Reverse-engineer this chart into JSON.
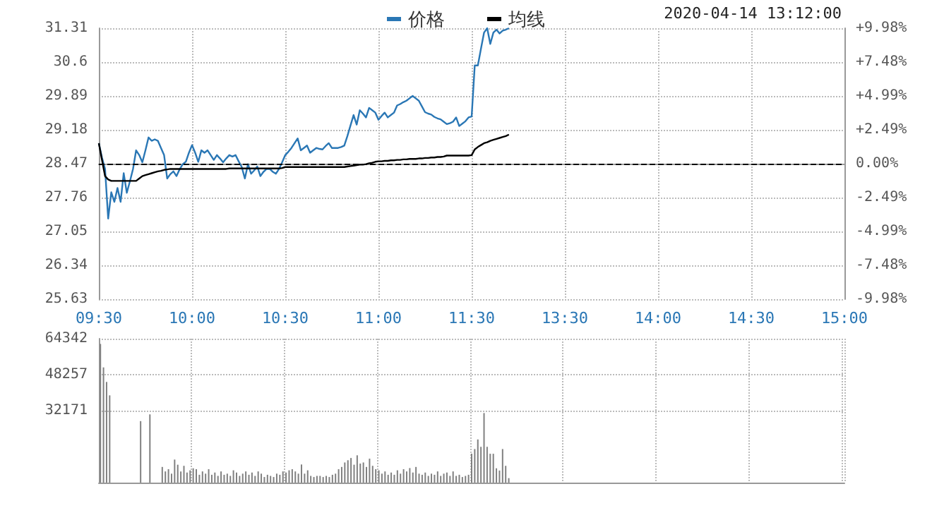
{
  "chart_data": [
    {
      "type": "line",
      "legend": "top",
      "grid": true,
      "categories": [
        "09:30",
        null,
        null,
        null,
        null,
        null,
        null,
        null,
        null,
        null,
        null,
        null,
        null,
        null,
        null,
        null,
        null,
        null,
        null,
        null,
        null,
        null,
        null,
        null,
        null,
        null,
        null,
        null,
        null,
        null,
        "10:00",
        null,
        null,
        null,
        null,
        null,
        null,
        null,
        null,
        null,
        null,
        null,
        null,
        null,
        null,
        null,
        null,
        null,
        null,
        null,
        null,
        null,
        null,
        null,
        null,
        null,
        null,
        null,
        null,
        null,
        "10:30",
        null,
        null,
        null,
        null,
        null,
        null,
        null,
        null,
        null,
        null,
        null,
        null,
        null,
        null,
        null,
        null,
        null,
        null,
        null,
        null,
        null,
        null,
        null,
        null,
        null,
        null,
        null,
        null,
        null,
        "11:00",
        null,
        null,
        null,
        null,
        null,
        null,
        null,
        null,
        null,
        null,
        null,
        null,
        null,
        null,
        null,
        null,
        null,
        null,
        null,
        null,
        null,
        null,
        null,
        null,
        null,
        null,
        null,
        null,
        null,
        "11:30",
        null,
        null,
        null,
        null,
        null,
        null,
        null,
        null,
        null,
        null,
        null,
        null,
        null,
        null,
        null,
        null,
        null,
        null,
        null,
        null,
        null,
        null,
        null,
        null,
        null,
        null,
        null,
        null,
        null,
        "13:30",
        null,
        null,
        null,
        null,
        null,
        null,
        null,
        null,
        null,
        null,
        null,
        null,
        null,
        null,
        null,
        null,
        null,
        null,
        null,
        null,
        null,
        null,
        null,
        null,
        null,
        null,
        null,
        null,
        null,
        "14:00",
        null,
        null,
        null,
        null,
        null,
        null,
        null,
        null,
        null,
        null,
        null,
        null,
        null,
        null,
        null,
        null,
        null,
        null,
        null,
        null,
        null,
        null,
        null,
        null,
        null,
        null,
        null,
        null,
        null,
        "14:30",
        null,
        null,
        null,
        null,
        null,
        null,
        null,
        null,
        null,
        null,
        null,
        null,
        null,
        null,
        null,
        null,
        null,
        null,
        null,
        null,
        null,
        null,
        null,
        null,
        null,
        null,
        null,
        null,
        null,
        "15:00"
      ],
      "ylim": [
        25.63,
        31.31
      ],
      "yticks": [
        25.63,
        26.34,
        27.05,
        27.76,
        28.47,
        29.18,
        29.89,
        30.6,
        31.31
      ],
      "y2lim": [
        -9.98,
        9.98
      ],
      "y2ticks": [
        {
          "value": -9.98,
          "label": "-9.98%"
        },
        {
          "value": -7.48,
          "label": "-7.48%"
        },
        {
          "value": -4.99,
          "label": "-4.99%"
        },
        {
          "value": -2.49,
          "label": "-2.49%"
        },
        {
          "value": 0,
          "label": "0.00%"
        },
        {
          "value": 2.49,
          "label": "+2.49%"
        },
        {
          "value": 4.99,
          "label": "+4.99%"
        },
        {
          "value": 7.48,
          "label": "+7.48%"
        },
        {
          "value": 9.98,
          "label": "+9.98%"
        }
      ],
      "ref_lines": [
        {
          "axis": "y",
          "value": 28.47,
          "color": "#000000",
          "line_style": "dashed"
        }
      ],
      "annotations": [
        "2020-04-14 13:12:00"
      ],
      "series": [
        {
          "name": "价格",
          "color": "#2a77b5",
          "values": [
            28.9,
            28.6,
            28.36,
            27.32,
            27.87,
            27.67,
            27.96,
            27.67,
            28.27,
            27.86,
            28.1,
            28.36,
            28.75,
            28.65,
            28.5,
            28.75,
            29.02,
            28.95,
            28.98,
            28.95,
            28.8,
            28.65,
            28.16,
            28.25,
            28.31,
            28.21,
            28.35,
            28.46,
            28.51,
            28.7,
            28.86,
            28.7,
            28.51,
            28.75,
            28.7,
            28.75,
            28.65,
            28.55,
            28.65,
            28.58,
            28.5,
            28.58,
            28.65,
            28.62,
            28.65,
            28.52,
            28.4,
            28.16,
            28.46,
            28.26,
            28.33,
            28.41,
            28.21,
            28.3,
            28.36,
            28.36,
            28.3,
            28.26,
            28.36,
            28.5,
            28.65,
            28.72,
            28.8,
            28.9,
            29.0,
            28.75,
            28.8,
            28.85,
            28.7,
            28.75,
            28.8,
            28.78,
            28.77,
            28.84,
            28.9,
            28.8,
            28.8,
            28.8,
            28.82,
            28.85,
            29.05,
            29.27,
            29.49,
            29.29,
            29.59,
            29.52,
            29.44,
            29.64,
            29.59,
            29.54,
            29.39,
            29.47,
            29.54,
            29.44,
            29.49,
            29.54,
            29.69,
            29.72,
            29.76,
            29.79,
            29.84,
            29.89,
            29.84,
            29.79,
            29.67,
            29.55,
            29.52,
            29.5,
            29.45,
            29.42,
            29.4,
            29.35,
            29.3,
            29.32,
            29.35,
            29.44,
            29.26,
            29.31,
            29.36,
            29.44,
            29.46,
            30.53,
            30.53,
            30.88,
            31.22,
            31.31,
            30.98,
            31.22,
            31.28,
            31.2,
            31.26,
            31.28,
            31.31,
            null,
            null,
            null,
            null,
            null,
            null,
            null,
            null,
            null,
            null,
            null,
            null,
            null,
            null,
            null,
            null,
            null,
            null,
            null,
            null,
            null,
            null,
            null,
            null,
            null,
            null,
            null,
            null,
            null,
            null,
            null,
            null,
            null,
            null,
            null,
            null,
            null,
            null,
            null,
            null,
            null,
            null,
            null,
            null,
            null,
            null,
            null,
            null,
            null,
            null,
            null,
            null,
            null,
            null,
            null,
            null,
            null,
            null,
            null,
            null,
            null,
            null,
            null,
            null,
            null,
            null,
            null,
            null,
            null,
            null,
            null,
            null,
            null,
            null,
            null,
            null,
            null,
            null,
            null,
            null,
            null,
            null,
            null,
            null,
            null,
            null,
            null,
            null,
            null,
            null,
            null,
            null,
            null,
            null,
            null,
            null,
            null,
            null,
            null,
            null,
            null,
            null,
            null,
            null,
            null,
            null,
            null,
            null
          ]
        },
        {
          "name": "均线",
          "color": "#000000",
          "values": [
            28.9,
            28.55,
            28.21,
            28.14,
            28.11,
            28.11,
            28.11,
            28.11,
            28.11,
            28.11,
            28.11,
            28.11,
            28.11,
            28.16,
            28.21,
            28.23,
            28.25,
            28.27,
            28.29,
            28.31,
            28.32,
            28.34,
            28.35,
            28.36,
            28.36,
            28.36,
            28.36,
            28.36,
            28.36,
            28.36,
            28.36,
            28.36,
            28.36,
            28.36,
            28.36,
            28.36,
            28.36,
            28.36,
            28.36,
            28.36,
            28.36,
            28.36,
            28.37,
            28.37,
            28.37,
            28.37,
            28.37,
            28.37,
            28.37,
            28.37,
            28.37,
            28.37,
            28.37,
            28.37,
            28.37,
            28.37,
            28.37,
            28.37,
            28.37,
            28.38,
            28.4,
            28.4,
            28.4,
            28.4,
            28.4,
            28.4,
            28.4,
            28.4,
            28.4,
            28.4,
            28.4,
            28.4,
            28.4,
            28.4,
            28.4,
            28.4,
            28.4,
            28.4,
            28.4,
            28.4,
            28.41,
            28.42,
            28.43,
            28.44,
            28.45,
            28.45,
            28.46,
            28.48,
            28.49,
            28.51,
            28.52,
            28.52,
            28.53,
            28.53,
            28.54,
            28.54,
            28.55,
            28.55,
            28.56,
            28.56,
            28.57,
            28.57,
            28.57,
            28.58,
            28.58,
            28.59,
            28.59,
            28.6,
            28.6,
            28.61,
            28.61,
            28.62,
            28.64,
            28.64,
            28.64,
            28.64,
            28.64,
            28.64,
            28.64,
            28.64,
            28.65,
            28.77,
            28.82,
            28.86,
            28.9,
            28.92,
            28.95,
            28.97,
            28.99,
            29.01,
            29.03,
            29.05,
            29.08,
            null,
            null,
            null,
            null,
            null,
            null,
            null,
            null,
            null,
            null,
            null,
            null,
            null,
            null,
            null,
            null,
            null,
            null,
            null,
            null,
            null,
            null,
            null,
            null,
            null,
            null,
            null,
            null,
            null,
            null,
            null,
            null,
            null,
            null,
            null,
            null,
            null,
            null,
            null,
            null,
            null,
            null,
            null,
            null,
            null,
            null,
            null,
            null,
            null,
            null,
            null,
            null,
            null,
            null,
            null,
            null,
            null,
            null,
            null,
            null,
            null,
            null,
            null,
            null,
            null,
            null,
            null,
            null,
            null,
            null,
            null,
            null,
            null,
            null,
            null,
            null,
            null,
            null,
            null,
            null,
            null,
            null,
            null,
            null,
            null,
            null,
            null,
            null,
            null,
            null,
            null,
            null,
            null,
            null,
            null,
            null,
            null,
            null,
            null,
            null,
            null,
            null,
            null,
            null,
            null,
            null,
            null,
            null
          ]
        }
      ]
    },
    {
      "type": "bar",
      "grid": true,
      "tick_labels": "y",
      "categories": [
        null,
        null,
        null,
        null,
        null,
        null,
        null,
        null,
        null,
        null,
        null,
        null,
        null,
        null,
        null,
        null,
        null,
        null,
        null,
        null,
        null,
        null,
        null,
        null,
        null,
        null,
        null,
        null,
        null,
        null,
        null,
        null,
        null,
        null,
        null,
        null,
        null,
        null,
        null,
        null,
        null,
        null,
        null,
        null,
        null,
        null,
        null,
        null,
        null,
        null,
        null,
        null,
        null,
        null,
        null,
        null,
        null,
        null,
        null,
        null,
        null,
        null,
        null,
        null,
        null,
        null,
        null,
        null,
        null,
        null,
        null,
        null,
        null,
        null,
        null,
        null,
        null,
        null,
        null,
        null,
        null,
        null,
        null,
        null,
        null,
        null,
        null,
        null,
        null,
        null,
        null,
        null,
        null,
        null,
        null,
        null,
        null,
        null,
        null,
        null,
        null,
        null,
        null,
        null,
        null,
        null,
        null,
        null,
        null,
        null,
        null,
        null,
        null,
        null,
        null,
        null,
        null,
        null,
        null,
        null,
        null,
        null,
        null,
        null,
        null,
        null,
        null,
        null,
        null,
        null,
        null,
        null,
        null,
        null,
        null,
        null,
        null,
        null,
        null,
        null,
        null,
        null,
        null,
        null,
        null,
        null,
        null,
        null,
        null,
        null,
        null,
        null,
        null,
        null,
        null,
        null,
        null,
        null,
        null,
        null,
        null,
        null,
        null,
        null,
        null,
        null,
        null,
        null,
        null,
        null,
        null,
        null,
        null,
        null,
        null,
        null,
        null,
        null,
        null,
        null,
        null,
        null,
        null,
        null,
        null,
        null,
        null,
        null,
        null,
        null,
        null,
        null,
        null,
        null,
        null,
        null,
        null,
        null,
        null,
        null,
        null,
        null,
        null,
        null,
        null,
        null,
        null,
        null,
        null,
        null,
        null,
        null,
        null,
        null,
        null,
        null,
        null,
        null,
        null,
        null,
        null,
        null,
        null,
        null,
        null,
        null,
        null,
        null,
        null,
        null,
        null,
        null,
        null,
        null,
        null,
        null,
        null,
        null,
        null,
        null,
        null
      ],
      "ylim": [
        0,
        64342
      ],
      "yticks": [
        32171,
        48257,
        64342
      ],
      "series": [
        {
          "color": "#808080",
          "values": [
            62000,
            51500,
            45000,
            39000,
            null,
            null,
            null,
            null,
            null,
            null,
            null,
            null,
            null,
            27500,
            null,
            null,
            30500,
            null,
            null,
            null,
            7000,
            5000,
            6000,
            4000,
            10300,
            8000,
            5000,
            7500,
            4500,
            5500,
            6400,
            6000,
            3500,
            5000,
            4000,
            6000,
            3500,
            4500,
            3000,
            5000,
            3500,
            4000,
            3000,
            5500,
            4500,
            3000,
            4000,
            5000,
            3500,
            4500,
            3000,
            5000,
            4000,
            2500,
            3500,
            3000,
            2500,
            4000,
            3500,
            5000,
            4500,
            5500,
            6000,
            5000,
            4000,
            8100,
            4000,
            5500,
            3000,
            2500,
            3000,
            3000,
            2500,
            3000,
            2500,
            3500,
            4000,
            6000,
            7000,
            9000,
            10000,
            11000,
            8000,
            12200,
            8500,
            9000,
            7000,
            10700,
            7500,
            6000,
            5500,
            4000,
            5000,
            3500,
            4500,
            3500,
            5500,
            4000,
            6000,
            5000,
            6500,
            4500,
            7000,
            4000,
            3500,
            4500,
            3000,
            4000,
            3500,
            5000,
            3000,
            4000,
            4500,
            3000,
            5000,
            3000,
            3500,
            2500,
            3000,
            3500,
            12900,
            15000,
            19300,
            16000,
            31100,
            16000,
            12900,
            12900,
            6400,
            5400,
            15000,
            7500,
            2000,
            null,
            null,
            null,
            null,
            null,
            null,
            null,
            null,
            null,
            null,
            null,
            null,
            null,
            null,
            null,
            null,
            null,
            null,
            null,
            null,
            null,
            null,
            null,
            null,
            null,
            null,
            null,
            null,
            null,
            null,
            null,
            null,
            null,
            null,
            null,
            null,
            null,
            null,
            null,
            null,
            null,
            null,
            null,
            null,
            null,
            null,
            null,
            null,
            null,
            null,
            null,
            null,
            null,
            null,
            null,
            null,
            null,
            null,
            null,
            null,
            null,
            null,
            null,
            null,
            null,
            null,
            null,
            null,
            null,
            null,
            null,
            null,
            null,
            null,
            null,
            null,
            null,
            null,
            null,
            null,
            null,
            null,
            null,
            null,
            null,
            null,
            null,
            null,
            null,
            null,
            null,
            null,
            null,
            null,
            null,
            null,
            null,
            null,
            null,
            null,
            null,
            null,
            null,
            null,
            null,
            null,
            null,
            null
          ]
        }
      ]
    }
  ]
}
